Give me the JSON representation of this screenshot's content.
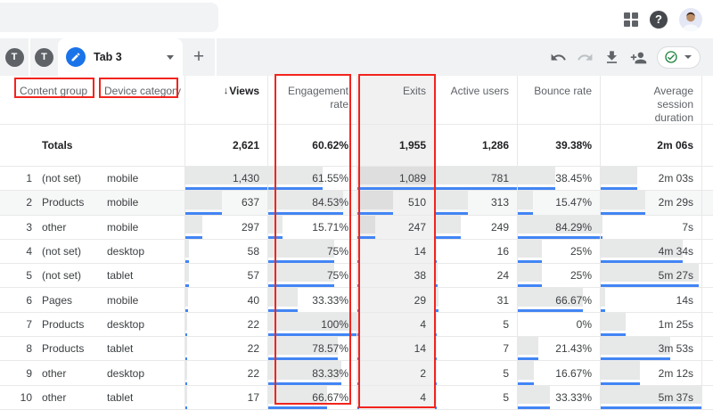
{
  "colors": {
    "annotation_red": "#f2241d",
    "bar_blue": "#4285f4",
    "active_tab_blue": "#1a73e8",
    "status_green": "#188038"
  },
  "tabs": {
    "inactive": [
      {
        "label": "T"
      },
      {
        "label": "T"
      }
    ],
    "active": {
      "label": "Tab 3",
      "icon": "pencil-icon"
    },
    "add_label": "+"
  },
  "toolbar": {
    "icons": [
      {
        "name": "undo",
        "disabled": false
      },
      {
        "name": "redo",
        "disabled": true
      },
      {
        "name": "download",
        "disabled": false
      },
      {
        "name": "add-user",
        "disabled": false
      }
    ],
    "status_badge": {
      "icon": "check-circle",
      "has_caret": true
    }
  },
  "table": {
    "dim_headers": [
      {
        "key": "content_group",
        "label": "Content group",
        "annotated": true
      },
      {
        "key": "device_category",
        "label": "Device category",
        "annotated": true
      }
    ],
    "metric_headers": [
      {
        "key": "views",
        "label": "Views",
        "sorted": true
      },
      {
        "key": "engagement_rate",
        "label": "Engagement rate",
        "annotated": true
      },
      {
        "key": "exits",
        "label": "Exits",
        "annotated": true,
        "highlighted": true
      },
      {
        "key": "active_users",
        "label": "Active users"
      },
      {
        "key": "bounce_rate",
        "label": "Bounce rate"
      },
      {
        "key": "avg_session_duration",
        "label": "Average session duration"
      }
    ],
    "totals_label": "Totals",
    "totals": {
      "views": "2,621",
      "engagement_rate": "60.62%",
      "exits": "1,955",
      "active_users": "1,286",
      "bounce_rate": "39.38%",
      "avg_session_duration": "2m 06s"
    },
    "rows": [
      {
        "num": "1",
        "content_group": "(not set)",
        "device_category": "mobile",
        "views": "1,430",
        "engagement_rate": "61.55%",
        "exits": "1,089",
        "active_users": "781",
        "bounce_rate": "38.45%",
        "avg_session_duration": "2m 03s",
        "hover": false
      },
      {
        "num": "2",
        "content_group": "Products",
        "device_category": "mobile",
        "views": "637",
        "engagement_rate": "84.53%",
        "exits": "510",
        "active_users": "313",
        "bounce_rate": "15.47%",
        "avg_session_duration": "2m 29s",
        "hover": true
      },
      {
        "num": "3",
        "content_group": "other",
        "device_category": "mobile",
        "views": "297",
        "engagement_rate": "15.71%",
        "exits": "247",
        "active_users": "249",
        "bounce_rate": "84.29%",
        "avg_session_duration": "7s",
        "hover": false
      },
      {
        "num": "4",
        "content_group": "(not set)",
        "device_category": "desktop",
        "views": "58",
        "engagement_rate": "75%",
        "exits": "14",
        "active_users": "16",
        "bounce_rate": "25%",
        "avg_session_duration": "4m 34s",
        "hover": false
      },
      {
        "num": "5",
        "content_group": "(not set)",
        "device_category": "tablet",
        "views": "57",
        "engagement_rate": "75%",
        "exits": "38",
        "active_users": "24",
        "bounce_rate": "25%",
        "avg_session_duration": "5m 27s",
        "hover": false
      },
      {
        "num": "6",
        "content_group": "Pages",
        "device_category": "mobile",
        "views": "40",
        "engagement_rate": "33.33%",
        "exits": "29",
        "active_users": "31",
        "bounce_rate": "66.67%",
        "avg_session_duration": "14s",
        "hover": false
      },
      {
        "num": "7",
        "content_group": "Products",
        "device_category": "desktop",
        "views": "22",
        "engagement_rate": "100%",
        "exits": "4",
        "active_users": "5",
        "bounce_rate": "0%",
        "avg_session_duration": "1m 25s",
        "hover": false
      },
      {
        "num": "8",
        "content_group": "Products",
        "device_category": "tablet",
        "views": "22",
        "engagement_rate": "78.57%",
        "exits": "14",
        "active_users": "7",
        "bounce_rate": "21.43%",
        "avg_session_duration": "3m 53s",
        "hover": false
      },
      {
        "num": "9",
        "content_group": "other",
        "device_category": "desktop",
        "views": "22",
        "engagement_rate": "83.33%",
        "exits": "2",
        "active_users": "5",
        "bounce_rate": "16.67%",
        "avg_session_duration": "2m 12s",
        "hover": false
      },
      {
        "num": "10",
        "content_group": "other",
        "device_category": "tablet",
        "views": "17",
        "engagement_rate": "66.67%",
        "exits": "4",
        "active_users": "5",
        "bounce_rate": "33.33%",
        "avg_session_duration": "5m 37s",
        "hover": false
      }
    ]
  },
  "annotations": {
    "color": "#f2241d",
    "boxes": [
      "content-group-header",
      "device-category-header",
      "engagement-rate-column",
      "exits-column"
    ]
  }
}
